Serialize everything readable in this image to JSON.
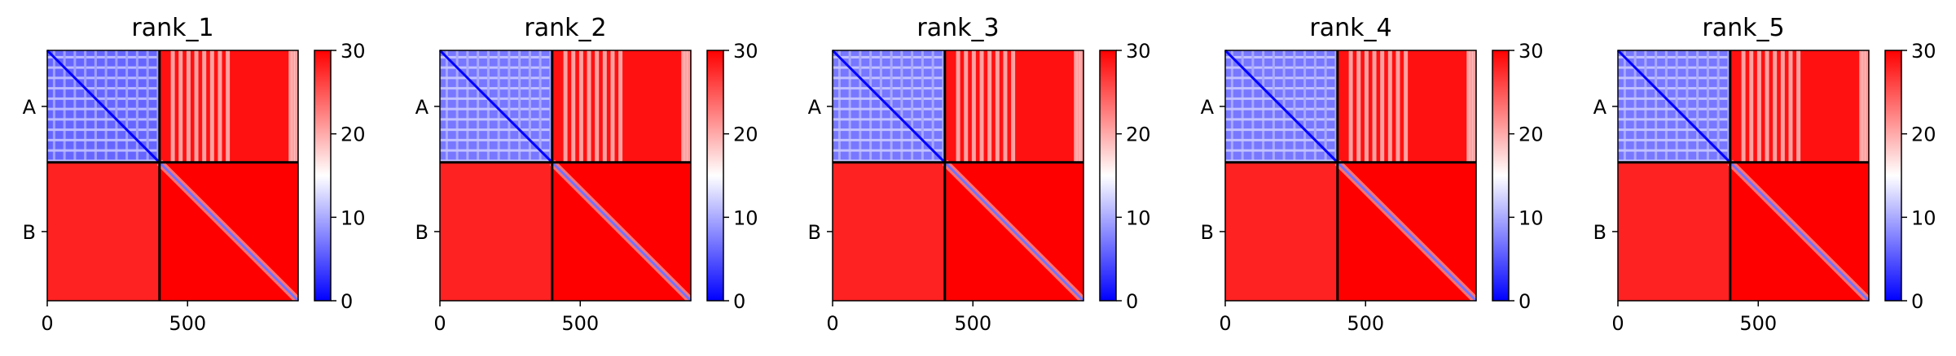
{
  "chart_data": [
    {
      "type": "heatmap",
      "title": "rank_1",
      "chains": [
        "A",
        "B"
      ],
      "chain_boundary": 400,
      "n_residues": 894,
      "x_ticks": [
        0,
        500
      ],
      "colorbar": {
        "ticks": [
          0,
          10,
          20,
          30
        ],
        "range": [
          0,
          30
        ],
        "colors": [
          "#0000ff",
          "#ffffff",
          "#ff0000"
        ]
      },
      "block_values": {
        "A-A": 6,
        "A-B": 29,
        "B-A": 28,
        "B-B": 30,
        "diagonal": 0
      }
    },
    {
      "type": "heatmap",
      "title": "rank_2",
      "chains": [
        "A",
        "B"
      ],
      "chain_boundary": 400,
      "n_residues": 894,
      "x_ticks": [
        0,
        500
      ],
      "colorbar": {
        "ticks": [
          0,
          10,
          20,
          30
        ],
        "range": [
          0,
          30
        ],
        "colors": [
          "#0000ff",
          "#ffffff",
          "#ff0000"
        ]
      },
      "block_values": {
        "A-A": 7,
        "A-B": 29,
        "B-A": 28,
        "B-B": 30,
        "diagonal": 0
      }
    },
    {
      "type": "heatmap",
      "title": "rank_3",
      "chains": [
        "A",
        "B"
      ],
      "chain_boundary": 400,
      "n_residues": 894,
      "x_ticks": [
        0,
        500
      ],
      "colorbar": {
        "ticks": [
          0,
          10,
          20,
          30
        ],
        "range": [
          0,
          30
        ],
        "colors": [
          "#0000ff",
          "#ffffff",
          "#ff0000"
        ]
      },
      "block_values": {
        "A-A": 7,
        "A-B": 29,
        "B-A": 28,
        "B-B": 30,
        "diagonal": 0
      }
    },
    {
      "type": "heatmap",
      "title": "rank_4",
      "chains": [
        "A",
        "B"
      ],
      "chain_boundary": 400,
      "n_residues": 894,
      "x_ticks": [
        0,
        500
      ],
      "colorbar": {
        "ticks": [
          0,
          10,
          20,
          30
        ],
        "range": [
          0,
          30
        ],
        "colors": [
          "#0000ff",
          "#ffffff",
          "#ff0000"
        ]
      },
      "block_values": {
        "A-A": 7,
        "A-B": 29,
        "B-A": 28,
        "B-B": 30,
        "diagonal": 0
      }
    },
    {
      "type": "heatmap",
      "title": "rank_5",
      "chains": [
        "A",
        "B"
      ],
      "chain_boundary": 400,
      "n_residues": 894,
      "x_ticks": [
        0,
        500
      ],
      "colorbar": {
        "ticks": [
          0,
          10,
          20,
          30
        ],
        "range": [
          0,
          30
        ],
        "colors": [
          "#0000ff",
          "#ffffff",
          "#ff0000"
        ]
      },
      "block_values": {
        "A-A": 7,
        "A-B": 29,
        "B-A": 28,
        "B-B": 30,
        "diagonal": 0
      }
    }
  ]
}
